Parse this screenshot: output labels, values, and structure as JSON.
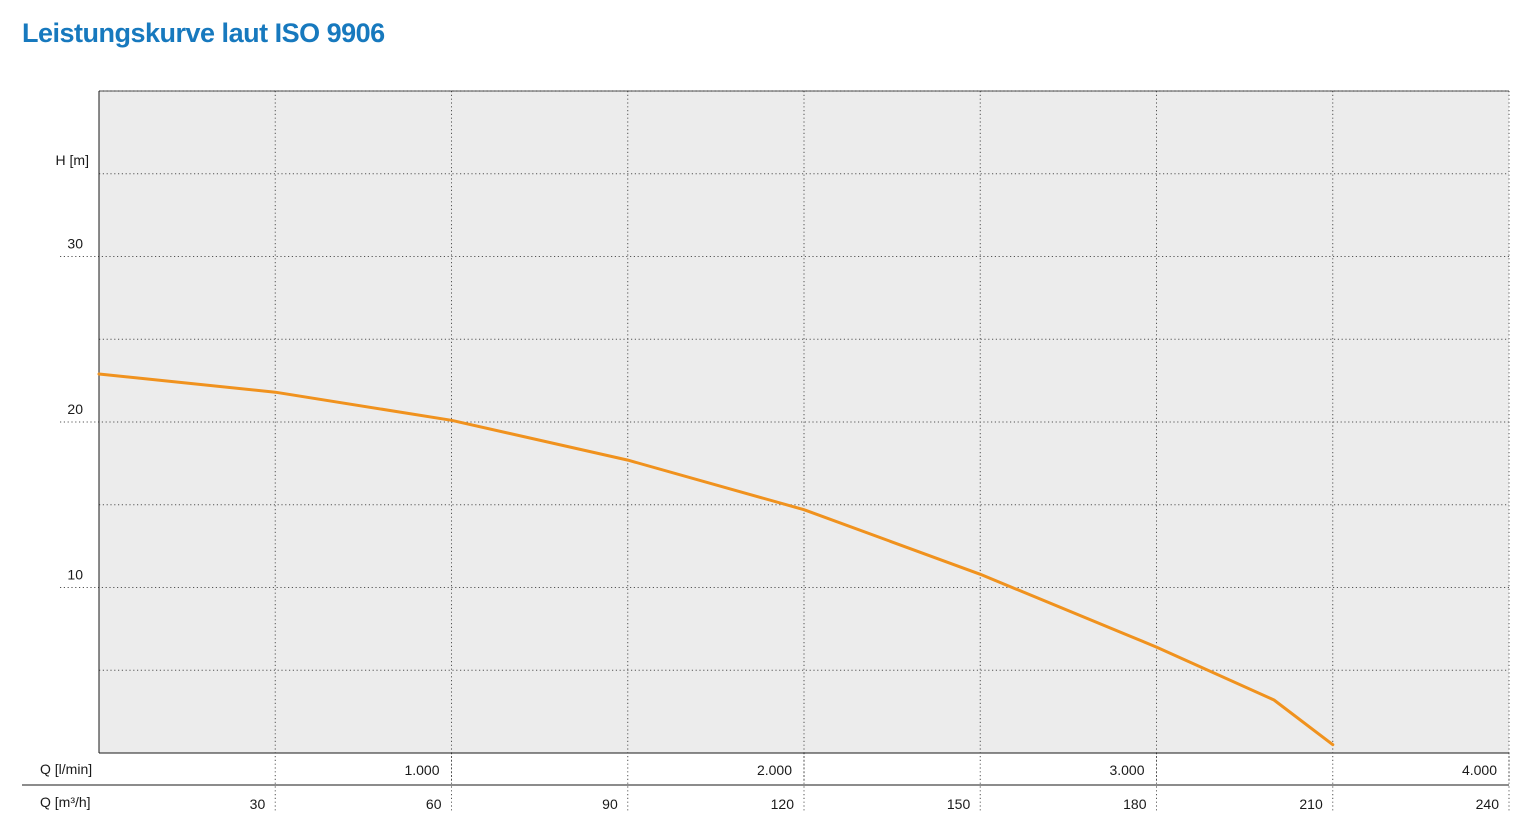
{
  "title": "Leistungskurve laut ISO 9906",
  "colors": {
    "title": "#1779be",
    "curve": "#f0921e",
    "plot_bg": "#ececec"
  },
  "chart_data": {
    "type": "line",
    "title": "Leistungskurve laut ISO 9906",
    "ylabel": "H [m]",
    "xlabel_lmin": "Q [l/min]",
    "xlabel_m3h": "Q [m³/h]",
    "ylim": [
      0,
      40
    ],
    "y_ticks": [
      10,
      20,
      30
    ],
    "y_tick_labels": [
      "10",
      "20",
      "30"
    ],
    "xlim_m3h": [
      0,
      240
    ],
    "x_ticks_m3h": [
      30,
      60,
      90,
      120,
      150,
      180,
      210,
      240
    ],
    "x_tick_labels_m3h": [
      "30",
      "60",
      "90",
      "120",
      "150",
      "180",
      "210",
      "240"
    ],
    "xlim_lmin": [
      0,
      4000
    ],
    "x_ticks_lmin": [
      1000,
      2000,
      3000,
      4000
    ],
    "x_tick_labels_lmin": [
      "1.000",
      "2.000",
      "3.000",
      "4.000"
    ],
    "grid": true,
    "series": [
      {
        "x_m3h": [
          0,
          30,
          60,
          90,
          120,
          150,
          180,
          200,
          210
        ],
        "y": [
          22.9,
          21.8,
          20.1,
          17.7,
          14.7,
          10.8,
          6.4,
          3.2,
          0.5
        ]
      }
    ]
  }
}
